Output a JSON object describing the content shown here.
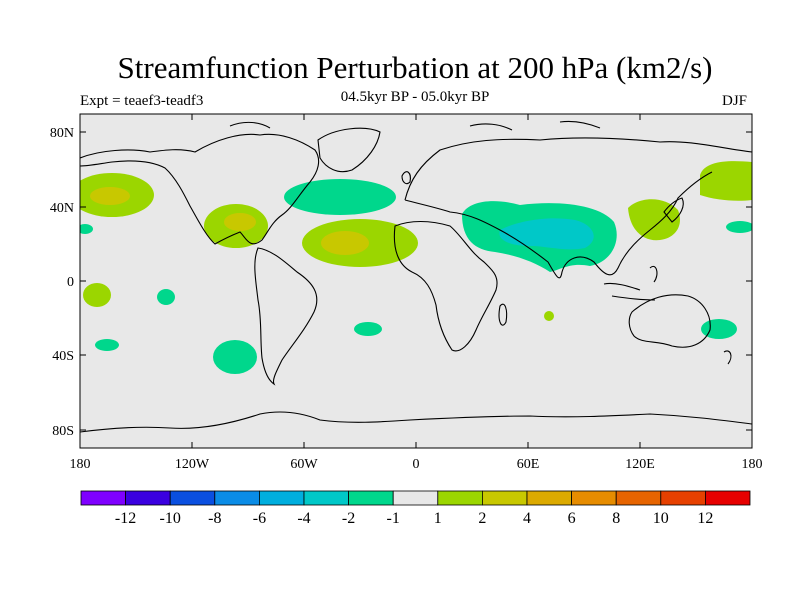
{
  "title": "Streamfunction Perturbation at 200 hPa (km2/s)",
  "experiment": "Expt = teaef3-teadf3",
  "period": "04.5kyr BP - 05.0kyr BP",
  "season": "DJF",
  "map": {
    "lat_ticks": [
      "80N",
      "40N",
      "0",
      "40S",
      "80S"
    ],
    "lon_ticks": [
      "180",
      "120W",
      "60W",
      "0",
      "60E",
      "120E",
      "180"
    ],
    "background_color": "#e8e8e8",
    "anomalies": [
      {
        "region": "north-pacific",
        "color": "#9bd600",
        "level": "2"
      },
      {
        "region": "north-pacific-core",
        "color": "#c8c800",
        "level": "4"
      },
      {
        "region": "gulf-of-mexico",
        "color": "#9bd600",
        "level": "2"
      },
      {
        "region": "gulf-of-mexico-core",
        "color": "#c8c800",
        "level": "4"
      },
      {
        "region": "central-atlantic",
        "color": "#9bd600",
        "level": "2"
      },
      {
        "region": "central-atlantic-core",
        "color": "#c8c800",
        "level": "4"
      },
      {
        "region": "north-atlantic",
        "color": "#00d78c",
        "level": "-1"
      },
      {
        "region": "asia",
        "color": "#00d78c",
        "level": "-1"
      },
      {
        "region": "asia-core",
        "color": "#00c8c8",
        "level": "-2"
      },
      {
        "region": "east-asia",
        "color": "#9bd600",
        "level": "2"
      },
      {
        "region": "northwest-pacific",
        "color": "#9bd600",
        "level": "2"
      },
      {
        "region": "south-pacific",
        "color": "#00d78c",
        "level": "-1"
      },
      {
        "region": "tasman",
        "color": "#00d78c",
        "level": "-1"
      }
    ]
  },
  "colorbar": {
    "colors": [
      "#7f00ff",
      "#3a00e0",
      "#0a4fe0",
      "#0a8ce6",
      "#00aede",
      "#00c8c8",
      "#00d78c",
      "#e8e8e8",
      "#9bd600",
      "#c8c800",
      "#dcaa00",
      "#e68c00",
      "#e66400",
      "#e64000",
      "#e60000"
    ],
    "labels": [
      "-12",
      "-10",
      "-8",
      "-6",
      "-4",
      "-2",
      "-1",
      "1",
      "2",
      "4",
      "6",
      "8",
      "10",
      "12"
    ]
  }
}
